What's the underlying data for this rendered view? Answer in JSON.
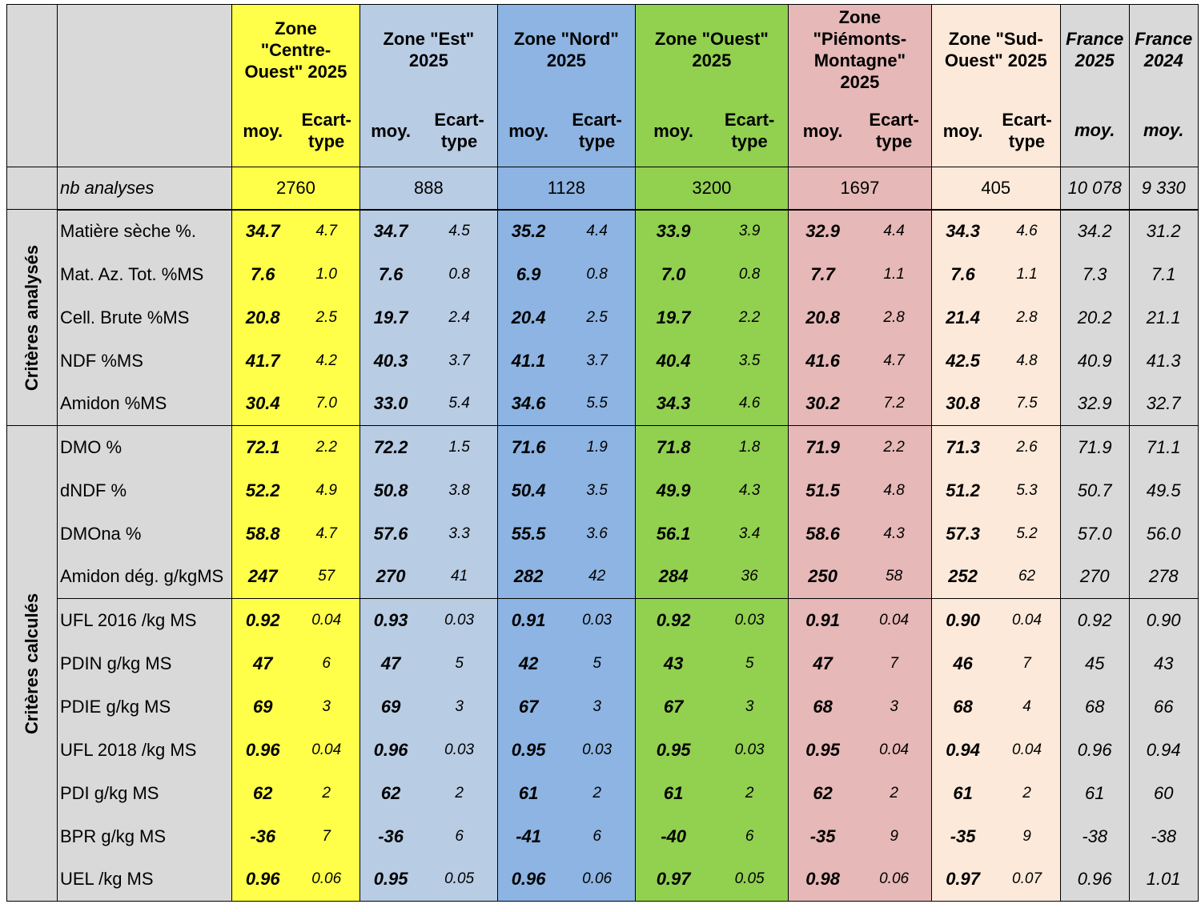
{
  "colors": {
    "gray": "#d9d9d9",
    "centre_ouest": "#ffff4a",
    "est": "#b8cce4",
    "nord": "#8db4e2",
    "ouest": "#92d050",
    "piemonts": "#e6b8b7",
    "sud_ouest": "#fde9d9"
  },
  "header": {
    "zones": [
      {
        "name": "Zone \"Centre-Ouest\" 2025",
        "mean_label": "moy.",
        "sd_label": "Ecart-type"
      },
      {
        "name": "Zone \"Est\" 2025",
        "mean_label": "moy.",
        "sd_label": "Ecart-type"
      },
      {
        "name": "Zone \"Nord\" 2025",
        "mean_label": "moy.",
        "sd_label": "Ecart-type"
      },
      {
        "name": "Zone \"Ouest\" 2025",
        "mean_label": "moy.",
        "sd_label": "Ecart-type"
      },
      {
        "name": "Zone \"Piémonts-Montagne\" 2025",
        "mean_label": "moy.",
        "sd_label": "Ecart-type"
      },
      {
        "name": "Zone \"Sud-Ouest\" 2025",
        "mean_label": "moy.",
        "sd_label": "Ecart-type"
      }
    ],
    "france": [
      {
        "name": "France 2025",
        "mean_label": "moy."
      },
      {
        "name": "France 2024",
        "mean_label": "moy."
      }
    ]
  },
  "nb_analyses": {
    "label": "nb analyses",
    "values": [
      "2760",
      "888",
      "1128",
      "3200",
      "1697",
      "405",
      "10 078",
      "9 330"
    ]
  },
  "groups": [
    {
      "label": "Critères analysés",
      "rows": [
        {
          "label": "Matière sèche %.",
          "values": [
            "34.7",
            "4.7",
            "34.7",
            "4.5",
            "35.2",
            "4.4",
            "33.9",
            "3.9",
            "32.9",
            "4.4",
            "34.3",
            "4.6",
            "34.2",
            "31.2"
          ]
        },
        {
          "label": "Mat. Az. Tot. %MS",
          "values": [
            "7.6",
            "1.0",
            "7.6",
            "0.8",
            "6.9",
            "0.8",
            "7.0",
            "0.8",
            "7.7",
            "1.1",
            "7.6",
            "1.1",
            "7.3",
            "7.1"
          ]
        },
        {
          "label": "Cell. Brute %MS",
          "values": [
            "20.8",
            "2.5",
            "19.7",
            "2.4",
            "20.4",
            "2.5",
            "19.7",
            "2.2",
            "20.8",
            "2.8",
            "21.4",
            "2.8",
            "20.2",
            "21.1"
          ]
        },
        {
          "label": "NDF %MS",
          "values": [
            "41.7",
            "4.2",
            "40.3",
            "3.7",
            "41.1",
            "3.7",
            "40.4",
            "3.5",
            "41.6",
            "4.7",
            "42.5",
            "4.8",
            "40.9",
            "41.3"
          ]
        },
        {
          "label": "Amidon %MS",
          "values": [
            "30.4",
            "7.0",
            "33.0",
            "5.4",
            "34.6",
            "5.5",
            "34.3",
            "4.6",
            "30.2",
            "7.2",
            "30.8",
            "7.5",
            "32.9",
            "32.7"
          ]
        }
      ]
    },
    {
      "label": "Critères calculés",
      "rows": [
        {
          "label": "DMO %",
          "values": [
            "72.1",
            "2.2",
            "72.2",
            "1.5",
            "71.6",
            "1.9",
            "71.8",
            "1.8",
            "71.9",
            "2.2",
            "71.3",
            "2.6",
            "71.9",
            "71.1"
          ]
        },
        {
          "label": "dNDF %",
          "values": [
            "52.2",
            "4.9",
            "50.8",
            "3.8",
            "50.4",
            "3.5",
            "49.9",
            "4.3",
            "51.5",
            "4.8",
            "51.2",
            "5.3",
            "50.7",
            "49.5"
          ]
        },
        {
          "label": "DMOna %",
          "values": [
            "58.8",
            "4.7",
            "57.6",
            "3.3",
            "55.5",
            "3.6",
            "56.1",
            "3.4",
            "58.6",
            "4.3",
            "57.3",
            "5.2",
            "57.0",
            "56.0"
          ]
        },
        {
          "label": "Amidon dég. g/kgMS",
          "values": [
            "247",
            "57",
            "270",
            "41",
            "282",
            "42",
            "284",
            "36",
            "250",
            "58",
            "252",
            "62",
            "270",
            "278"
          ]
        },
        {
          "label": "UFL 2016 /kg MS",
          "values": [
            "0.92",
            "0.04",
            "0.93",
            "0.03",
            "0.91",
            "0.03",
            "0.92",
            "0.03",
            "0.91",
            "0.04",
            "0.90",
            "0.04",
            "0.92",
            "0.90"
          ]
        },
        {
          "label": "PDIN g/kg MS",
          "values": [
            "47",
            "6",
            "47",
            "5",
            "42",
            "5",
            "43",
            "5",
            "47",
            "7",
            "46",
            "7",
            "45",
            "43"
          ]
        },
        {
          "label": "PDIE g/kg MS",
          "values": [
            "69",
            "3",
            "69",
            "3",
            "67",
            "3",
            "67",
            "3",
            "68",
            "3",
            "68",
            "4",
            "68",
            "66"
          ]
        },
        {
          "label": "UFL 2018 /kg MS",
          "values": [
            "0.96",
            "0.04",
            "0.96",
            "0.03",
            "0.95",
            "0.03",
            "0.95",
            "0.03",
            "0.95",
            "0.04",
            "0.94",
            "0.04",
            "0.96",
            "0.94"
          ]
        },
        {
          "label": "PDI g/kg MS",
          "values": [
            "62",
            "2",
            "62",
            "2",
            "61",
            "2",
            "61",
            "2",
            "62",
            "2",
            "61",
            "2",
            "61",
            "60"
          ]
        },
        {
          "label": "BPR g/kg MS",
          "values": [
            "-36",
            "7",
            "-36",
            "6",
            "-41",
            "6",
            "-40",
            "6",
            "-35",
            "9",
            "-35",
            "9",
            "-38",
            "-38"
          ]
        },
        {
          "label": "UEL /kg MS",
          "values": [
            "0.96",
            "0.06",
            "0.95",
            "0.05",
            "0.96",
            "0.06",
            "0.97",
            "0.05",
            "0.98",
            "0.06",
            "0.97",
            "0.07",
            "0.96",
            "1.01"
          ]
        }
      ]
    }
  ]
}
